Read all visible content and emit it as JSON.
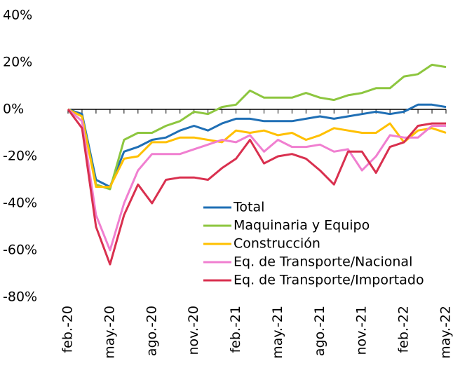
{
  "chart_data": {
    "type": "line",
    "categories": [
      "feb.-20",
      null,
      null,
      "may.-20",
      null,
      null,
      "ago.-20",
      null,
      null,
      "nov.-20",
      null,
      null,
      "feb.-21",
      null,
      null,
      "may.-21",
      null,
      null,
      "ago.-21",
      null,
      null,
      "nov.-21",
      null,
      null,
      "feb.-22",
      null,
      null,
      "may.-22"
    ],
    "ylim": [
      -80,
      40
    ],
    "yticks": [
      {
        "value": -80,
        "label": "-80%"
      },
      {
        "value": -60,
        "label": "-60%"
      },
      {
        "value": -40,
        "label": "-40%"
      },
      {
        "value": -20,
        "label": "-20%"
      },
      {
        "value": 0,
        "label": "0%"
      },
      {
        "value": 20,
        "label": "20%"
      },
      {
        "value": 40,
        "label": "40%"
      }
    ],
    "series": [
      {
        "name": "Total",
        "color": "#1f6fb5",
        "values": [
          0,
          -2,
          -30,
          -33,
          -18,
          -16,
          -13,
          -12,
          -9,
          -7,
          -9,
          -6,
          -4,
          -4,
          -5,
          -5,
          -5,
          -4,
          -3,
          -4,
          -3,
          -2,
          -1,
          -2,
          -1,
          2,
          2,
          1
        ]
      },
      {
        "name": "Maquinaria y Equipo",
        "color": "#8dc63f",
        "values": [
          0,
          -3,
          -32,
          -34,
          -13,
          -10,
          -10,
          -7,
          -5,
          -1,
          -2,
          1,
          2,
          8,
          5,
          5,
          5,
          7,
          5,
          4,
          6,
          7,
          9,
          9,
          14,
          15,
          19,
          18
        ]
      },
      {
        "name": "Construcción",
        "color": "#ffc000",
        "values": [
          0,
          -3,
          -33,
          -33,
          -21,
          -20,
          -14,
          -14,
          -12,
          -12,
          -13,
          -14,
          -9,
          -10,
          -9,
          -11,
          -10,
          -13,
          -11,
          -8,
          -9,
          -10,
          -10,
          -6,
          -14,
          -9,
          -8,
          -10
        ]
      },
      {
        "name": "Eq. de Transporte/Nacional",
        "color": "#f07fd0",
        "values": [
          0,
          -5,
          -45,
          -60,
          -40,
          -26,
          -19,
          -19,
          -19,
          -17,
          -15,
          -13,
          -14,
          -11,
          -18,
          -13,
          -16,
          -16,
          -15,
          -18,
          -17,
          -26,
          -20,
          -11,
          -12,
          -12,
          -7,
          -7
        ]
      },
      {
        "name": "Eq. de Transporte/Importado",
        "color": "#d9304f",
        "values": [
          0,
          -8,
          -50,
          -66,
          -45,
          -32,
          -40,
          -30,
          -29,
          -29,
          -30,
          -25,
          -21,
          -13,
          -23,
          -20,
          -19,
          -21,
          -26,
          -32,
          -18,
          -18,
          -27,
          -16,
          -14,
          -7,
          -6,
          -6
        ]
      }
    ]
  }
}
